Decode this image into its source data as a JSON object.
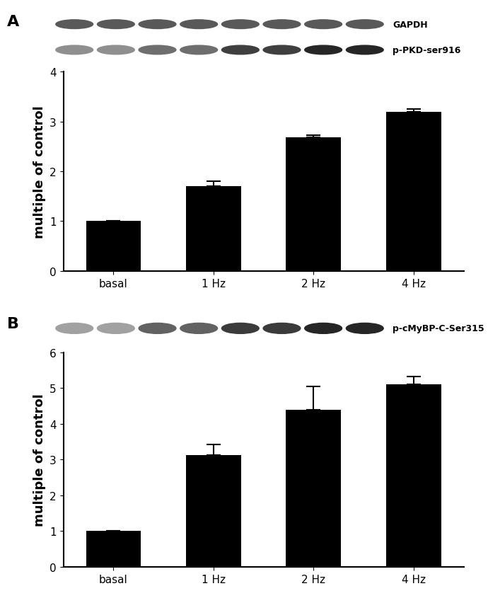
{
  "chart_data": [
    {
      "type": "bar",
      "panel_label": "A",
      "blot_labels": [
        "GAPDH",
        "p-PKD-ser916"
      ],
      "y_label": "multiple of control",
      "categories": [
        "basal",
        "1 Hz",
        "2 Hz",
        "4 Hz"
      ],
      "values": [
        1.0,
        1.7,
        2.68,
        3.2
      ],
      "errors": [
        0.0,
        0.1,
        0.04,
        0.05
      ],
      "color": "#000000",
      "ylim": [
        0,
        4
      ],
      "yticks": [
        0,
        1,
        2,
        3,
        4
      ],
      "grid": false
    },
    {
      "type": "bar",
      "panel_label": "B",
      "blot_labels": [
        "p-cMyBP-C-Ser315"
      ],
      "y_label": "multiple of control",
      "categories": [
        "basal",
        "1 Hz",
        "2 Hz",
        "4 Hz"
      ],
      "values": [
        1.0,
        3.12,
        4.4,
        5.1
      ],
      "errors": [
        0.0,
        0.3,
        0.65,
        0.22
      ],
      "color": "#000000",
      "ylim": [
        0,
        6
      ],
      "yticks": [
        0,
        1,
        2,
        3,
        4,
        5,
        6
      ],
      "grid": false
    }
  ]
}
